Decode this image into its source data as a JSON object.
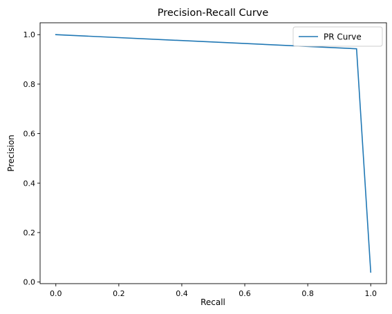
{
  "chart_data": {
    "type": "line",
    "title": "Precision-Recall Curve",
    "xlabel": "Recall",
    "ylabel": "Precision",
    "xlim": [
      -0.05,
      1.05
    ],
    "ylim": [
      -0.0065,
      1.048
    ],
    "xticks": [
      0.0,
      0.2,
      0.4,
      0.6,
      0.8,
      1.0
    ],
    "xtick_labels": [
      "0.0",
      "0.2",
      "0.4",
      "0.6",
      "0.8",
      "1.0"
    ],
    "yticks": [
      0.0,
      0.2,
      0.4,
      0.6,
      0.8,
      1.0
    ],
    "ytick_labels": [
      "0.0",
      "0.2",
      "0.4",
      "0.6",
      "0.8",
      "1.0"
    ],
    "grid": false,
    "legend_position": "upper right",
    "series": [
      {
        "name": "PR Curve",
        "color": "#1f77b4",
        "x": [
          0.0,
          0.955,
          1.0
        ],
        "y": [
          1.0,
          0.943,
          0.04
        ]
      }
    ]
  }
}
